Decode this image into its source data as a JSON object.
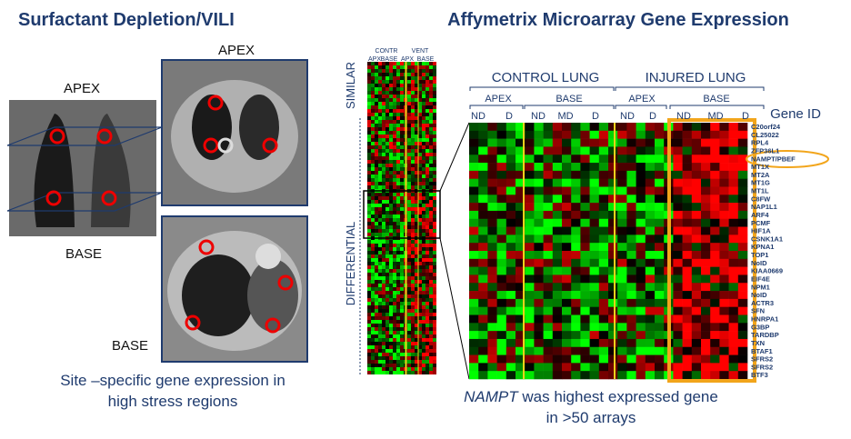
{
  "title_left": "Surfactant  Depletion/VILI",
  "title_right": "Affymetrix Microarray Gene Expression",
  "ct": {
    "apex_coronal": "APEX",
    "base_coronal": "BASE",
    "apex_axial": "APEX",
    "base_axial": "BASE"
  },
  "caption_left": [
    "Site –specific gene expression in",
    "high stress regions"
  ],
  "strip": {
    "side_top": "SIMILAR",
    "side_bottom": "DIFFERENTIAL",
    "groups": [
      "CONTR",
      "VENT"
    ],
    "sub": [
      "APX",
      "BASE",
      "APX",
      "BASE"
    ]
  },
  "heatmap": {
    "groups": [
      "CONTROL LUNG",
      "INJURED LUNG"
    ],
    "regions": [
      "APEX",
      "BASE",
      "APEX",
      "BASE"
    ],
    "subgroups": [
      "ND",
      "D",
      "ND",
      "MD",
      "D",
      "ND",
      "D",
      "ND",
      "MD",
      "D"
    ],
    "gene_header": "Gene ID",
    "genes": [
      "C20orf24",
      "CL25022",
      "RPL4",
      "ZFP36L1",
      "NAMPT/PBEF",
      "MT1X",
      "MT2A",
      "MT1G",
      "MT1L",
      "C8FW",
      "NAP1L1",
      "ARF4",
      "PCMF",
      "HIF1A",
      "CSNK1A1",
      "KPNA1",
      "TOP1",
      "NoID",
      "KIAA0669",
      "EIF4E",
      "NPM1",
      "NoID",
      "ACTR3",
      "SFN",
      "HNRPA1",
      "G3BP",
      "TARDBP",
      "TXN",
      "BTAF1",
      "SFRS2",
      "SFRS2",
      "BTF3"
    ]
  },
  "caption_right": {
    "gene": "NAMPT",
    "line1_rest": " was highest expressed gene",
    "line2": "in >50 arrays"
  }
}
